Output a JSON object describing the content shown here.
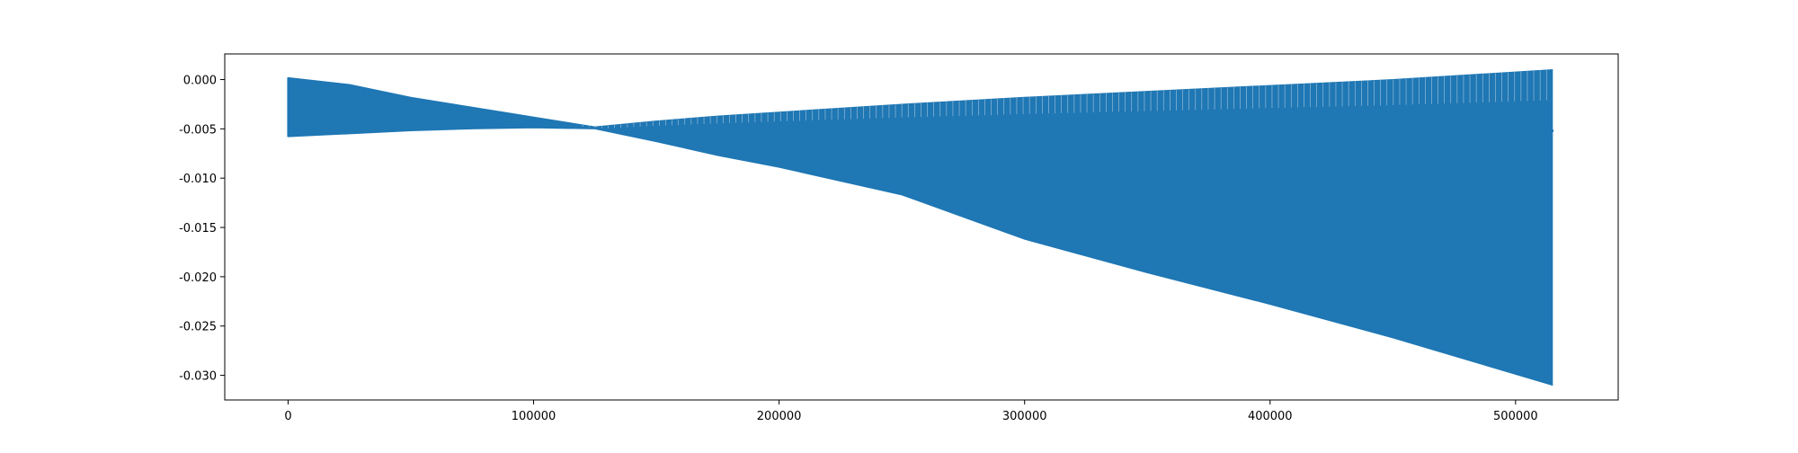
{
  "chart_data": {
    "type": "line",
    "title": "",
    "xlabel": "",
    "ylabel": "",
    "xlim": [
      -25800,
      541800
    ],
    "ylim": [
      -0.0325,
      0.0026
    ],
    "x_ticks": [
      0,
      100000,
      200000,
      300000,
      400000,
      500000
    ],
    "x_tick_labels": [
      "0",
      "100000",
      "200000",
      "300000",
      "400000",
      "500000"
    ],
    "y_ticks": [
      0.0,
      -0.005,
      -0.01,
      -0.015,
      -0.02,
      -0.025,
      -0.03
    ],
    "y_tick_labels": [
      "0.000",
      "-0.005",
      "-0.010",
      "-0.015",
      "-0.020",
      "-0.025",
      "-0.030"
    ],
    "grid": false,
    "legend": "none",
    "series": [
      {
        "color": "#1f77b4",
        "description_points": "Rapidly oscillating signal; upper and lower envelope values by x",
        "envelope_x": [
          0,
          25000,
          50000,
          75000,
          100000,
          125000,
          150000,
          175000,
          200000,
          250000,
          300000,
          350000,
          400000,
          450000,
          515000
        ],
        "envelope_upper": [
          0.0002,
          -0.0005,
          -0.0018,
          -0.0028,
          -0.0038,
          -0.0048,
          -0.0042,
          -0.0037,
          -0.0033,
          -0.0025,
          -0.0018,
          -0.0012,
          -0.0006,
          0.0,
          0.001
        ],
        "envelope_lower": [
          -0.0058,
          -0.0055,
          -0.0052,
          -0.005,
          -0.0049,
          -0.005,
          -0.0063,
          -0.0077,
          -0.0089,
          -0.0117,
          -0.0162,
          -0.0196,
          -0.0228,
          -0.0262,
          -0.031
        ],
        "end_x": 515000,
        "end_value": -0.0052
      }
    ]
  }
}
